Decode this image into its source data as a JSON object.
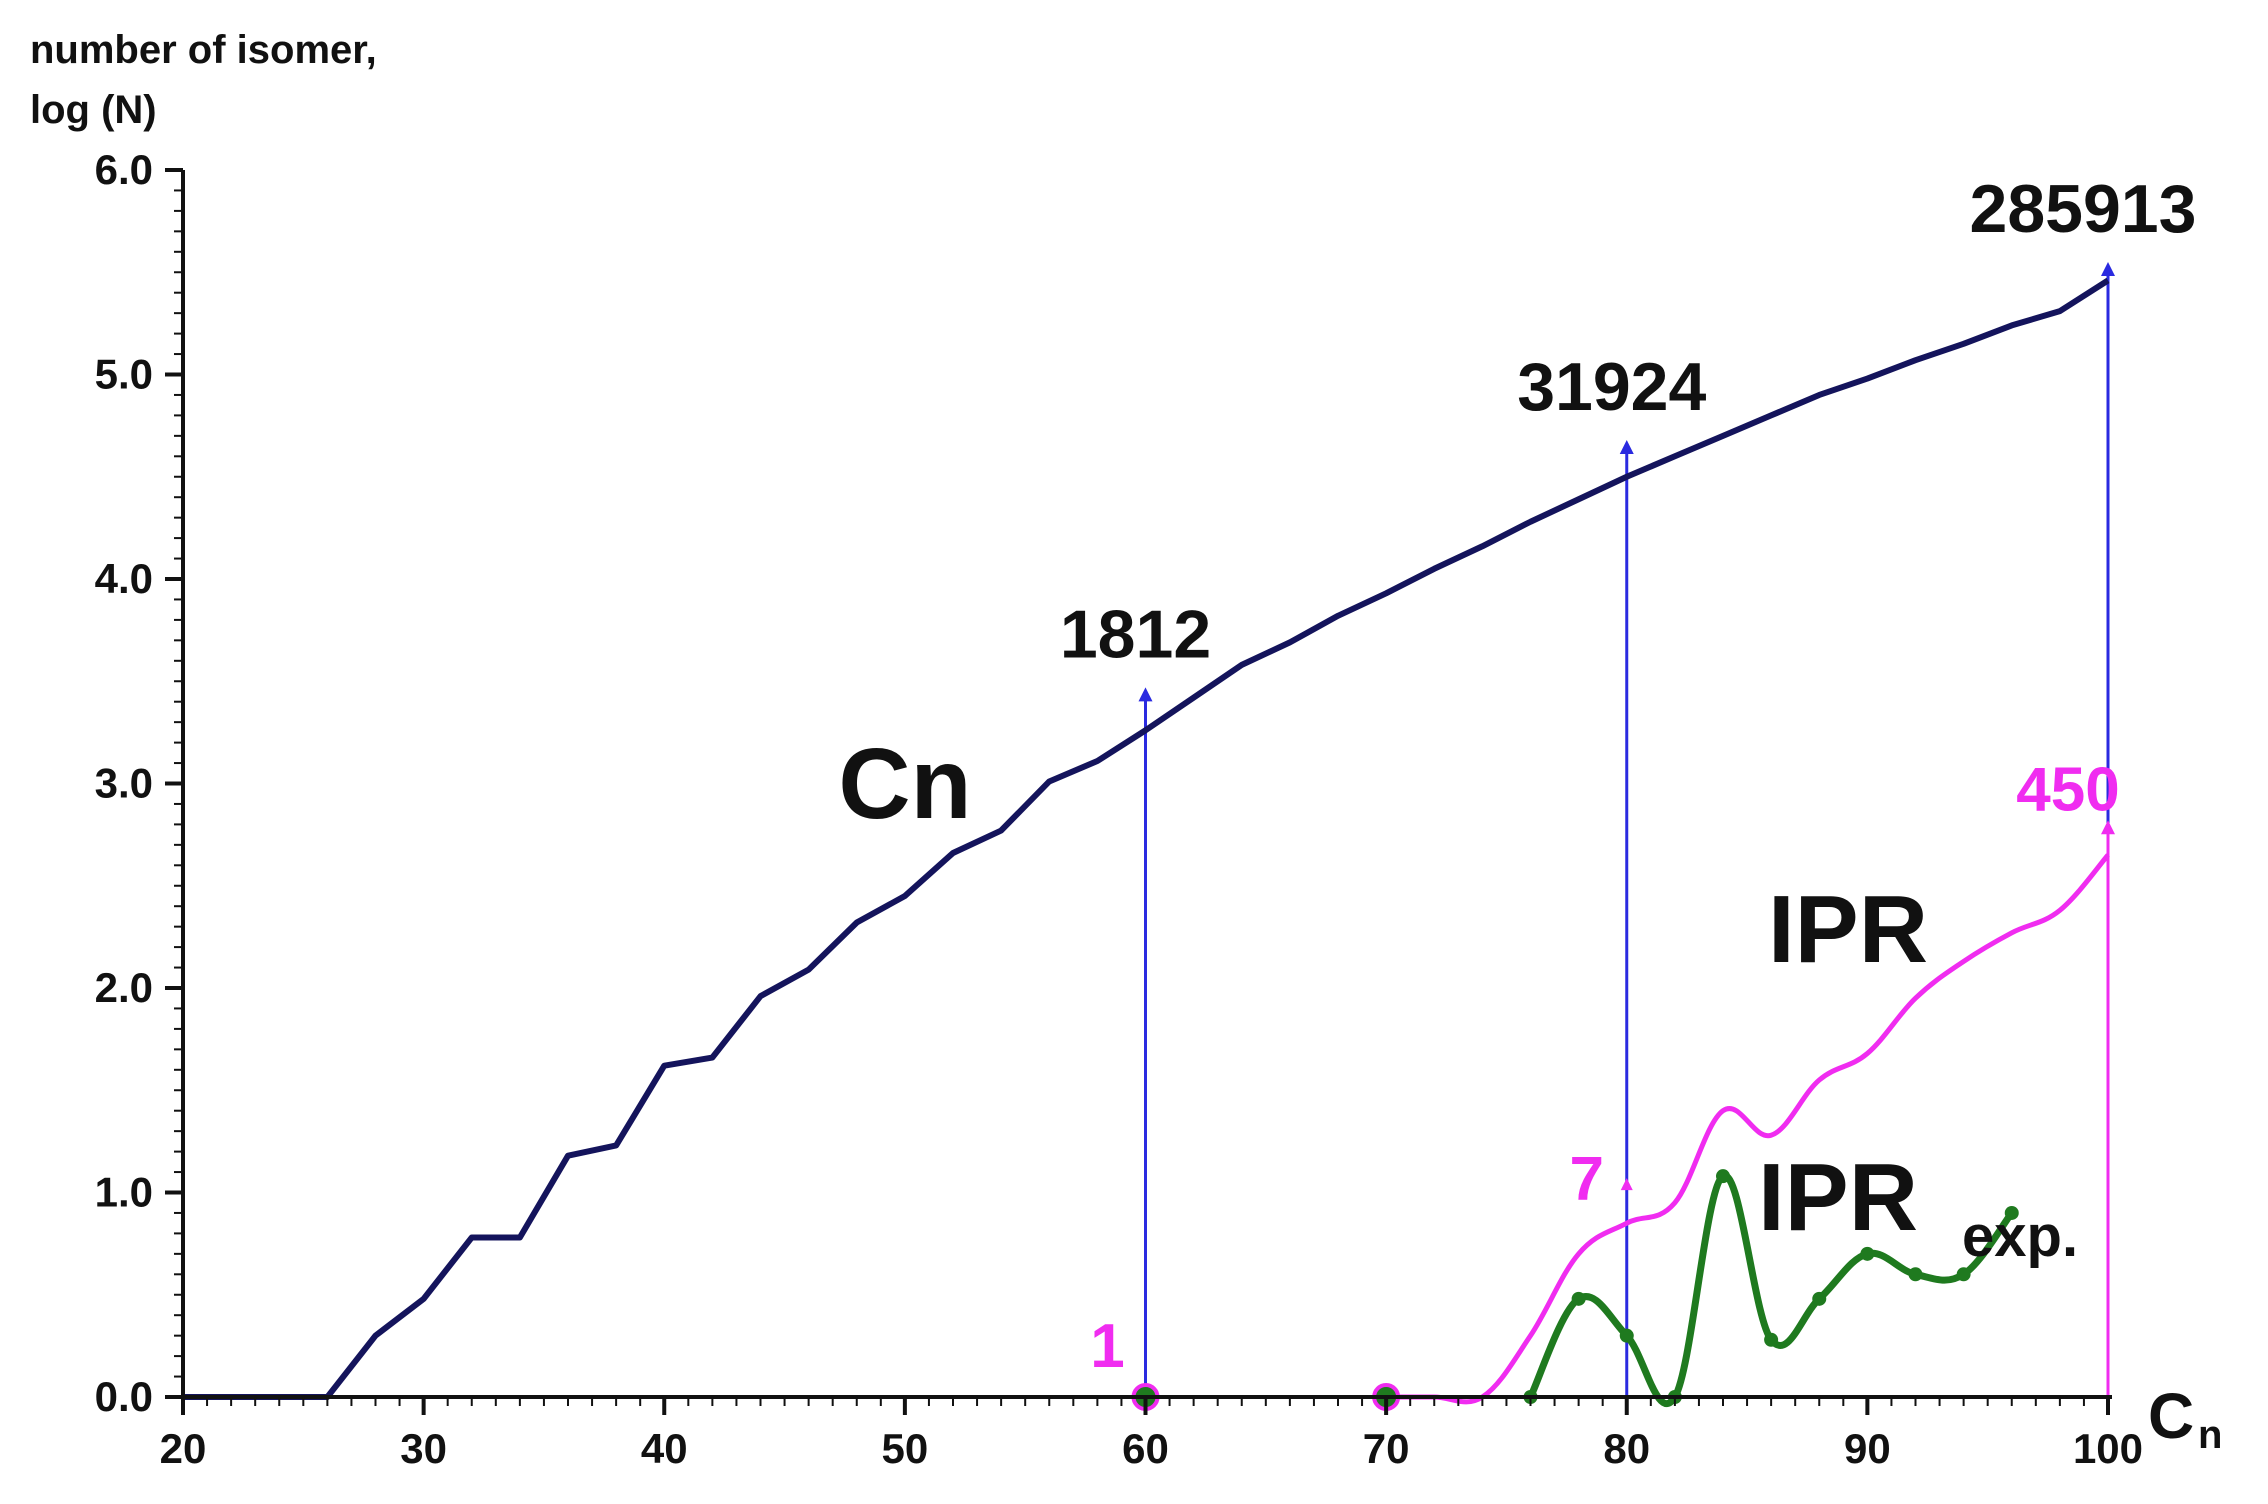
{
  "chart_data": {
    "type": "line",
    "ylabel_line1": "number of isomer,",
    "ylabel_line2": "log (N)",
    "xlabel": "C",
    "xlabel_sub": "n",
    "xlim": [
      20,
      100
    ],
    "ylim": [
      0,
      6
    ],
    "x_ticks": [
      "20",
      "30",
      "40",
      "50",
      "60",
      "70",
      "80",
      "90",
      "100"
    ],
    "y_ticks": [
      "0.0",
      "1.0",
      "2.0",
      "3.0",
      "4.0",
      "5.0",
      "6.0"
    ],
    "colors": {
      "cn": "#14145c",
      "ipr": "#f02cf0",
      "ipr_exp": "#1f7a1f",
      "arrow": "#2a2ae0",
      "axis": "#111111",
      "text": "#111111"
    },
    "series": [
      {
        "name": "Cn",
        "x": [
          20,
          22,
          24,
          26,
          28,
          30,
          32,
          34,
          36,
          38,
          40,
          42,
          44,
          46,
          48,
          50,
          52,
          54,
          56,
          58,
          60,
          62,
          64,
          66,
          68,
          70,
          72,
          74,
          76,
          78,
          80,
          82,
          84,
          86,
          88,
          90,
          92,
          94,
          96,
          98,
          100
        ],
        "y": [
          0.0,
          0.0,
          0.0,
          0.0,
          0.3,
          0.48,
          0.78,
          0.78,
          1.18,
          1.23,
          1.62,
          1.66,
          1.96,
          2.09,
          2.32,
          2.45,
          2.66,
          2.77,
          3.01,
          3.11,
          3.26,
          3.42,
          3.58,
          3.69,
          3.82,
          3.93,
          4.05,
          4.16,
          4.28,
          4.39,
          4.5,
          4.6,
          4.7,
          4.8,
          4.9,
          4.98,
          5.07,
          5.15,
          5.24,
          5.31,
          5.46
        ]
      },
      {
        "name": "IPR",
        "x": [
          60,
          70,
          72,
          74,
          76,
          78,
          80,
          82,
          84,
          86,
          88,
          90,
          92,
          94,
          96,
          98,
          100
        ],
        "y": [
          0.0,
          0.0,
          0.0,
          0.0,
          0.3,
          0.7,
          0.85,
          0.95,
          1.4,
          1.28,
          1.55,
          1.68,
          1.95,
          2.13,
          2.27,
          2.38,
          2.65
        ]
      },
      {
        "name": "IPR",
        "name_sub": "exp.",
        "x": [
          60,
          70,
          76,
          78,
          80,
          82,
          84,
          86,
          88,
          90,
          92,
          94,
          96
        ],
        "y": [
          0.0,
          0.0,
          0.0,
          0.48,
          0.3,
          0.0,
          1.08,
          0.28,
          0.48,
          0.7,
          0.6,
          0.6,
          0.9
        ]
      }
    ],
    "annotations": [
      {
        "text": "1812",
        "x": 60,
        "y": 3.47
      },
      {
        "text": "31924",
        "x": 80,
        "y": 4.68
      },
      {
        "text": "285913",
        "x": 100,
        "y": 5.55
      },
      {
        "text": "450",
        "x": 100,
        "y": 2.78
      },
      {
        "text": "7",
        "x": 80,
        "y": 1.07
      },
      {
        "text": "1",
        "x": 60,
        "y": 0.0
      }
    ]
  }
}
